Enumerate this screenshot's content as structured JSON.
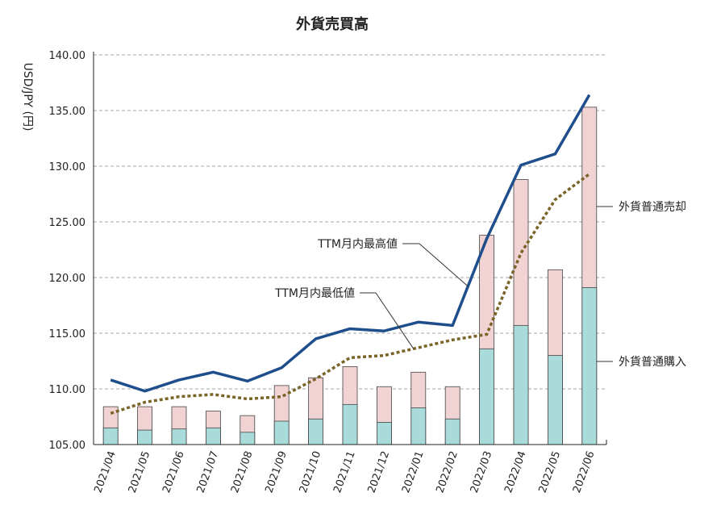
{
  "chart_data": {
    "type": "bar",
    "title": "外貨売買高",
    "xlabel": "",
    "ylabel": "USD/JPY (円)",
    "ylim": [
      105,
      140
    ],
    "yticks": [
      "105.00",
      "110.00",
      "115.00",
      "120.00",
      "125.00",
      "130.00",
      "135.00",
      "140.00"
    ],
    "grid": "horizontal-dashed",
    "categories": [
      "2021/04",
      "2021/05",
      "2021/06",
      "2021/07",
      "2021/08",
      "2021/09",
      "2021/10",
      "2021/11",
      "2021/12",
      "2022/01",
      "2022/02",
      "2022/03",
      "2022/04",
      "2022/05",
      "2022/06"
    ],
    "bar_series": [
      {
        "name": "外貨普通購入",
        "color": "#a8dbd9",
        "values": [
          106.5,
          106.3,
          106.4,
          106.5,
          106.1,
          107.1,
          107.3,
          108.6,
          107.0,
          108.3,
          107.3,
          113.6,
          115.7,
          113.0,
          119.1
        ]
      },
      {
        "name": "外貨普通売却",
        "color": "#f2d3d4",
        "values": [
          108.4,
          108.4,
          108.4,
          108.0,
          107.6,
          110.3,
          111.0,
          112.0,
          110.2,
          111.5,
          110.2,
          123.8,
          128.8,
          120.7,
          135.3
        ]
      }
    ],
    "line_series": [
      {
        "name": "TTM月内最高値",
        "color": "#1f4e8c",
        "style": "solid",
        "values": [
          110.8,
          109.8,
          110.8,
          111.5,
          110.7,
          111.9,
          114.5,
          115.4,
          115.2,
          116.0,
          115.7,
          123.5,
          130.1,
          131.1,
          136.4
        ]
      },
      {
        "name": "TTM月内最低値",
        "color": "#7a6428",
        "style": "dotted",
        "values": [
          107.8,
          108.8,
          109.3,
          109.5,
          109.1,
          109.3,
          110.9,
          112.8,
          113.0,
          113.7,
          114.4,
          114.9,
          122.2,
          127.0,
          129.3
        ]
      }
    ],
    "annotations": {
      "high": "TTM月内最高値",
      "low": "TTM月内最低値",
      "sell": "外貨普通売却",
      "buy": "外貨普通購入"
    }
  }
}
